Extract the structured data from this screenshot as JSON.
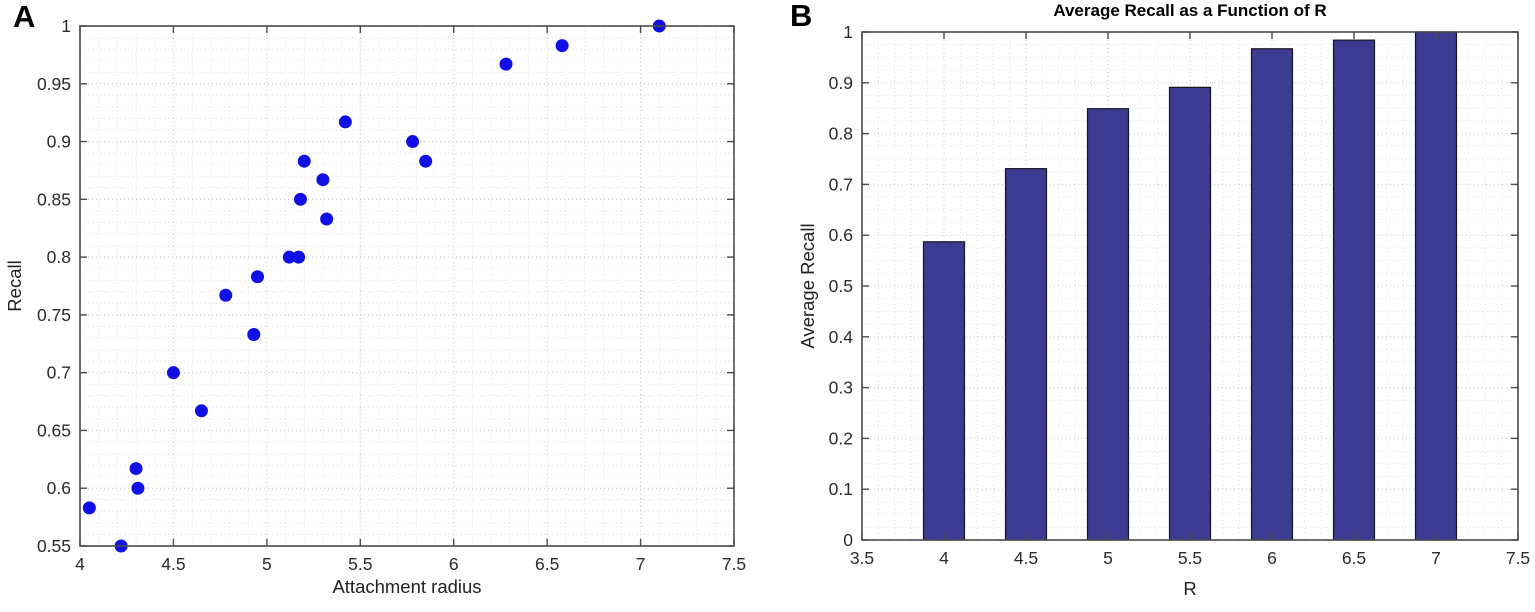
{
  "figure": {
    "panel_a_label": "A",
    "panel_b_label": "B"
  },
  "colors": {
    "scatter_point": "#0f0fe6",
    "bar_fill": "#3c3b92",
    "bar_edge": "#15151f",
    "axis": "#4a4a4a",
    "grid_major": "#c7c7c7",
    "grid_minor": "#dedede",
    "tick_text": "#2b2b2b"
  },
  "chart_data": [
    {
      "type": "scatter",
      "title": "",
      "xlabel": "Attachment radius",
      "ylabel": "Recall",
      "xlim": [
        4,
        7.5
      ],
      "ylim": [
        0.55,
        1.0
      ],
      "xticks": [
        4,
        4.5,
        5,
        5.5,
        6,
        6.5,
        7,
        7.5
      ],
      "xtick_labels": [
        "4",
        "4.5",
        "5",
        "5.5",
        "6",
        "6.5",
        "7",
        "7.5"
      ],
      "yticks": [
        0.55,
        0.6,
        0.65,
        0.7,
        0.75,
        0.8,
        0.85,
        0.9,
        0.95,
        1.0
      ],
      "ytick_labels": [
        "0.55",
        "0.6",
        "0.65",
        "0.7",
        "0.75",
        "0.8",
        "0.85",
        "0.9",
        "0.95",
        "1"
      ],
      "x_minor_step": 0.1,
      "y_minor_step": 0.01,
      "grid": "on",
      "legend": "none",
      "points": [
        [
          4.05,
          0.583
        ],
        [
          4.22,
          0.55
        ],
        [
          4.3,
          0.617
        ],
        [
          4.31,
          0.6
        ],
        [
          4.5,
          0.7
        ],
        [
          4.65,
          0.667
        ],
        [
          4.78,
          0.767
        ],
        [
          4.93,
          0.733
        ],
        [
          4.95,
          0.783
        ],
        [
          5.12,
          0.8
        ],
        [
          5.17,
          0.8
        ],
        [
          5.18,
          0.85
        ],
        [
          5.2,
          0.883
        ],
        [
          5.3,
          0.867
        ],
        [
          5.32,
          0.833
        ],
        [
          5.42,
          0.917
        ],
        [
          5.78,
          0.9
        ],
        [
          5.85,
          0.883
        ],
        [
          6.28,
          0.967
        ],
        [
          6.58,
          0.983
        ],
        [
          7.1,
          1.0
        ]
      ]
    },
    {
      "type": "bar",
      "title": "Average Recall as a Function of R",
      "xlabel": "R",
      "ylabel": "Average Recall",
      "xlim": [
        3.5,
        7.5
      ],
      "ylim": [
        0,
        1
      ],
      "xticks": [
        3.5,
        4,
        4.5,
        5,
        5.5,
        6,
        6.5,
        7,
        7.5
      ],
      "xtick_labels": [
        "3.5",
        "4",
        "4.5",
        "5",
        "5.5",
        "6",
        "6.5",
        "7",
        "7.5"
      ],
      "yticks": [
        0,
        0.1,
        0.2,
        0.3,
        0.4,
        0.5,
        0.6,
        0.7,
        0.8,
        0.9,
        1
      ],
      "ytick_labels": [
        "0",
        "0.1",
        "0.2",
        "0.3",
        "0.4",
        "0.5",
        "0.6",
        "0.7",
        "0.8",
        "0.9",
        "1"
      ],
      "x_minor_step": 0.1,
      "y_minor_step": 0.025,
      "grid": "on",
      "legend": "none",
      "categories": [
        4,
        4.5,
        5,
        5.5,
        6,
        6.5,
        7
      ],
      "values": [
        0.587,
        0.731,
        0.849,
        0.891,
        0.967,
        0.984,
        1.0
      ],
      "bar_width_units": 0.25
    }
  ]
}
